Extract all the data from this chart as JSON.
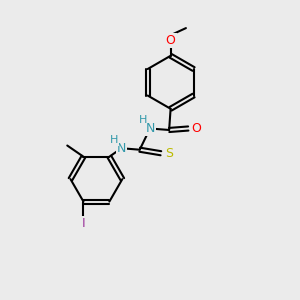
{
  "background_color": "#ebebeb",
  "bond_color": "#000000",
  "bond_width": 1.5,
  "atom_colors": {
    "O": "#ff0000",
    "N": "#3399aa",
    "S": "#bbbb00",
    "I": "#993399",
    "C": "#000000",
    "H": "#3399aa"
  },
  "font_size": 9
}
